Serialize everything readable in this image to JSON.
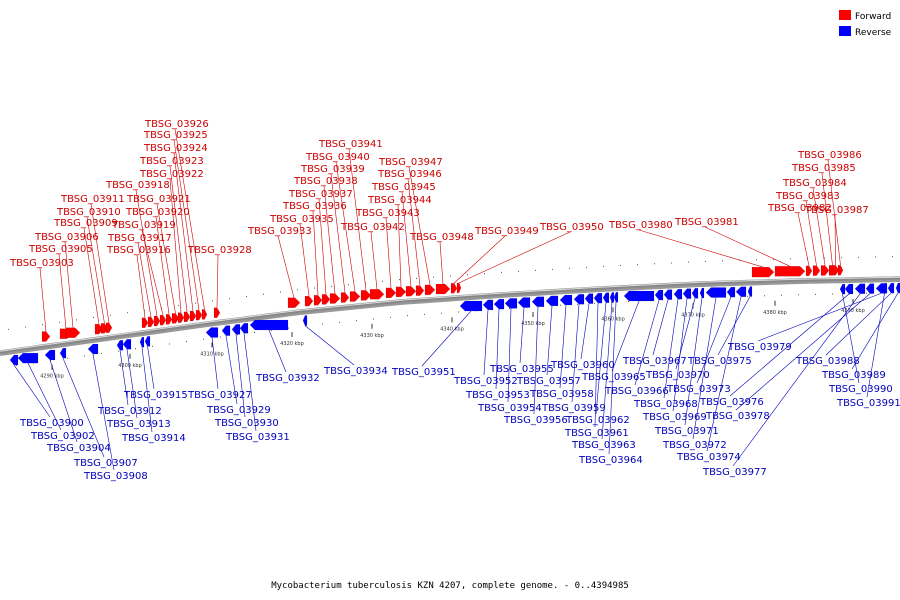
{
  "colors": {
    "forward": "#ff0000",
    "reverse": "#0000ff",
    "forward_text": "#cc0000",
    "reverse_text": "#0000bb",
    "backbone": "#888888"
  },
  "legend": {
    "forward": "Forward",
    "reverse": "Reverse"
  },
  "caption": "Mycobacterium tuberculosis KZN 4207, complete genome. - 0..4394985",
  "ticks": [
    "4290 kbp",
    "4300 kbp",
    "4310 kbp",
    "4320 kbp",
    "4330 kbp",
    "4340 kbp",
    "4350 kbp",
    "4360 kbp",
    "4370 kbp",
    "4380 kbp",
    "4390 kbp"
  ],
  "forward_genes": [
    "TBSG_03903",
    "TBSG_03905",
    "TBSG_03906",
    "TBSG_03909",
    "TBSG_03910",
    "TBSG_03911",
    "TBSG_03916",
    "TBSG_03917",
    "TBSG_03918",
    "TBSG_03919",
    "TBSG_03920",
    "TBSG_03921",
    "TBSG_03922",
    "TBSG_03923",
    "TBSG_03924",
    "TBSG_03925",
    "TBSG_03926",
    "TBSG_03928",
    "TBSG_03933",
    "TBSG_03935",
    "TBSG_03936",
    "TBSG_03937",
    "TBSG_03938",
    "TBSG_03939",
    "TBSG_03940",
    "TBSG_03941",
    "TBSG_03942",
    "TBSG_03943",
    "TBSG_03944",
    "TBSG_03945",
    "TBSG_03946",
    "TBSG_03947",
    "TBSG_03948",
    "TBSG_03949",
    "TBSG_03950",
    "TBSG_03980",
    "TBSG_03981",
    "TBSG_03982",
    "TBSG_03983",
    "TBSG_03984",
    "TBSG_03985",
    "TBSG_03986",
    "TBSG_03987"
  ],
  "reverse_genes": [
    "TBSG_03900",
    "TBSG_03902",
    "TBSG_03904",
    "TBSG_03907",
    "TBSG_03908",
    "TBSG_03912",
    "TBSG_03913",
    "TBSG_03914",
    "TBSG_03915",
    "TBSG_03927",
    "TBSG_03929",
    "TBSG_03930",
    "TBSG_03931",
    "TBSG_03932",
    "TBSG_03934",
    "TBSG_03951",
    "TBSG_03952",
    "TBSG_03953",
    "TBSG_03954",
    "TBSG_03955",
    "TBSG_03956",
    "TBSG_03957",
    "TBSG_03958",
    "TBSG_03959",
    "TBSG_03960",
    "TBSG_03961",
    "TBSG_03962",
    "TBSG_03963",
    "TBSG_03964",
    "TBSG_03965",
    "TBSG_03966",
    "TBSG_03967",
    "TBSG_03968",
    "TBSG_03969",
    "TBSG_03970",
    "TBSG_03971",
    "TBSG_03972",
    "TBSG_03973",
    "TBSG_03974",
    "TBSG_03975",
    "TBSG_03976",
    "TBSG_03977",
    "TBSG_03978",
    "TBSG_03979",
    "TBSG_03988",
    "TBSG_03989",
    "TBSG_03990",
    "TBSG_03991"
  ]
}
